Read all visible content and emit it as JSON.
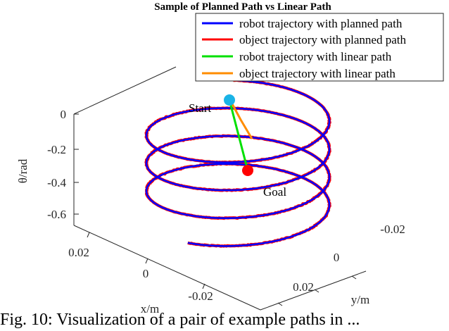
{
  "chart_data": {
    "type": "line",
    "projection": "3d",
    "title": "Sample of Planned Path vs Linear Path",
    "xlabel": "x/m",
    "ylabel": "y/m",
    "zlabel": "θ/rad",
    "x_ticks": [
      "0.02",
      "0",
      "-0.02"
    ],
    "y_ticks": [
      "-0.02",
      "0",
      "0.02"
    ],
    "z_ticks": [
      "0",
      "-0.2",
      "-0.4",
      "-0.6"
    ],
    "zlim": [
      -0.7,
      0.05
    ],
    "grid": false,
    "legend_position": "top-right",
    "series": [
      {
        "name": "robot trajectory with planned path",
        "color": "#0000ff",
        "shape": "helix",
        "center_x": 0.0,
        "center_y": 0.0,
        "radius": 0.028,
        "turns": 3.6,
        "theta_start": 0.0,
        "theta_end": -0.62
      },
      {
        "name": "object trajectory with planned path",
        "color": "#ff0000",
        "shape": "helix",
        "center_x": 0.0,
        "center_y": 0.0,
        "radius": 0.028,
        "turns": 3.6,
        "theta_start": 0.0,
        "theta_end": -0.62
      },
      {
        "name": "robot trajectory with linear path",
        "color": "#00e000",
        "shape": "line",
        "theta_start": 0.0,
        "theta_end": -0.4
      },
      {
        "name": "object trajectory with linear path",
        "color": "#ff8c00",
        "shape": "line",
        "theta_start": 0.0,
        "theta_end": -0.1
      }
    ],
    "markers": [
      {
        "label": "Start",
        "color": "#1ab3e6"
      },
      {
        "label": "Goal",
        "color": "#ff0000"
      }
    ]
  },
  "caption": "Fig. 10: Visualization of a pair of example paths in ..."
}
